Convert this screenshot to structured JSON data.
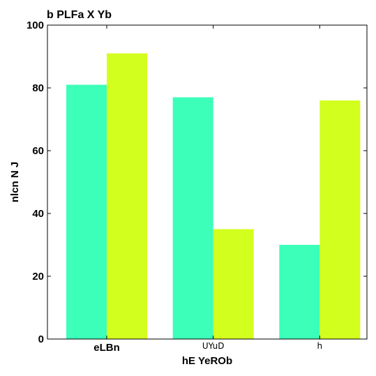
{
  "chart_data": {
    "type": "bar",
    "title": "b  PLFa X Yb",
    "xlabel": "hE YeROb",
    "ylabel": "nlcn N J",
    "categories": [
      "eLBn",
      "UYuD",
      "h"
    ],
    "category_label_bold": [
      true,
      false,
      false
    ],
    "series": [
      {
        "color": "#3cffb9",
        "values": [
          81,
          77,
          30
        ]
      },
      {
        "color": "#d3ff1f",
        "values": [
          91,
          35,
          76
        ]
      }
    ],
    "ylim": [
      0,
      100
    ],
    "yticks": [
      0,
      20,
      40,
      60,
      80,
      100
    ],
    "grid": false,
    "legend": "none"
  }
}
